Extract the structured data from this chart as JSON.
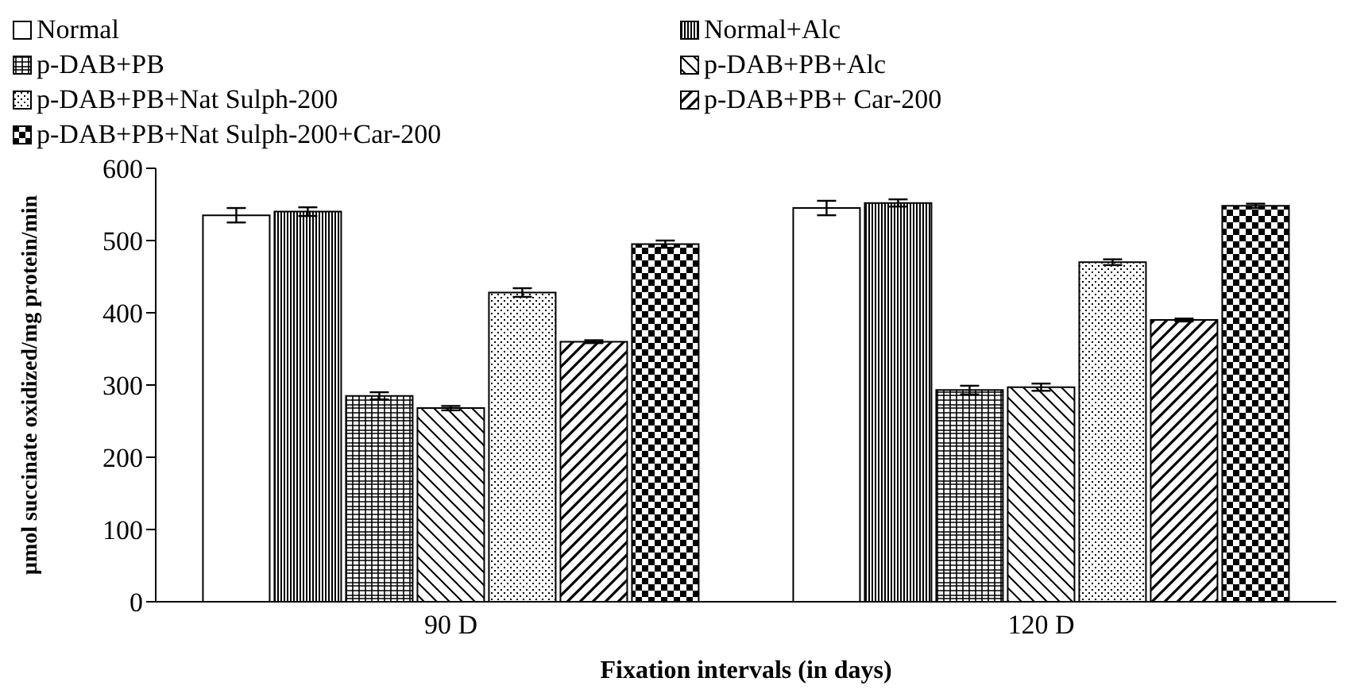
{
  "chart_data": {
    "type": "bar",
    "xlabel": "Fixation intervals (in days)",
    "ylabel": "µmol succinate oxidized/mg protein/min",
    "categories": [
      "90 D",
      "120 D"
    ],
    "series": [
      {
        "name": "Normal",
        "color": "#ffffff",
        "values": [
          535,
          545
        ],
        "errors": [
          10,
          10
        ]
      },
      {
        "name": "Normal+Alc",
        "color": "#000000",
        "values": [
          540,
          552
        ],
        "errors": [
          6,
          5
        ]
      },
      {
        "name": "p-DAB+PB",
        "color": "#000000",
        "values": [
          285,
          293
        ],
        "errors": [
          5,
          6
        ]
      },
      {
        "name": "p-DAB+PB+Alc",
        "color": "#000000",
        "values": [
          268,
          297
        ],
        "errors": [
          3,
          5
        ]
      },
      {
        "name": "p-DAB+PB+Nat Sulph-200",
        "color": "#000000",
        "values": [
          428,
          470
        ],
        "errors": [
          6,
          4
        ]
      },
      {
        "name": "p-DAB+PB+ Car-200",
        "color": "#000000",
        "values": [
          360,
          390
        ],
        "errors": [
          2,
          2
        ]
      },
      {
        "name": "p-DAB+PB+Nat Sulph-200+Car-200",
        "color": "#000000",
        "values": [
          495,
          548
        ],
        "errors": [
          5,
          3
        ]
      }
    ],
    "ylim": [
      0,
      600
    ],
    "yticks": [
      0,
      100,
      200,
      300,
      400,
      500,
      600
    ],
    "grid": false,
    "legend": "top"
  }
}
